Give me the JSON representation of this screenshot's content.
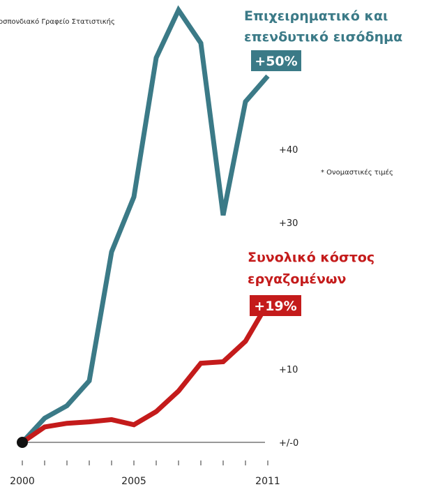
{
  "chart_data": {
    "type": "line",
    "source_text": "οσπονδιακό Γραφείο Στατιστικής",
    "note": "* Ονομαστικές τιμές",
    "x": [
      2000,
      2001,
      2002,
      2003,
      2004,
      2005,
      2006,
      2007,
      2008,
      2009,
      2010,
      2011
    ],
    "x_tick_labels": [
      "2000",
      "",
      "",
      "",
      "",
      "2005",
      "",
      "",
      "",
      "",
      "",
      "2011"
    ],
    "y_ticks": [
      0,
      10,
      30,
      40
    ],
    "y_tick_labels": [
      "+/-0",
      "+10",
      "+30",
      "+40"
    ],
    "ylim": [
      0,
      58
    ],
    "grid": false,
    "series": [
      {
        "name": "Επιχειρηματικό και επενδυτικό εισόδημα",
        "name_lines": [
          "Επιχειρηματικό και",
          "επενδυτικό εισόδημα"
        ],
        "badge": "+50%",
        "color": "#3b7a87",
        "values": [
          0,
          3.3,
          5,
          8.4,
          26,
          33.5,
          52.5,
          59,
          54.5,
          31,
          46.5,
          50
        ]
      },
      {
        "name": "Συνολικό κόστος εργαζομένων",
        "name_lines": [
          "Συνολικό κόστος",
          "εργαζομένων"
        ],
        "badge": "+19%",
        "color": "#c41b1b",
        "values": [
          0,
          2.1,
          2.6,
          2.8,
          3.1,
          2.4,
          4.2,
          7,
          10.8,
          11,
          13.8,
          19
        ]
      }
    ]
  }
}
